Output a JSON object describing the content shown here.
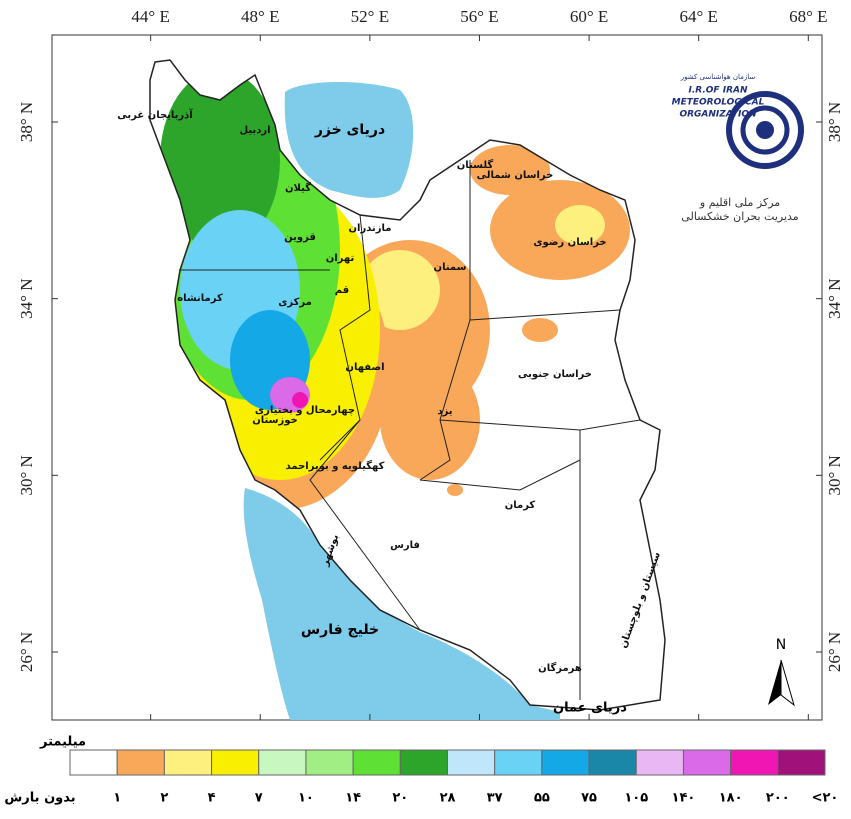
{
  "map": {
    "lon_ticks": [
      {
        "value": 44,
        "label": "44° E"
      },
      {
        "value": 48,
        "label": "48° E"
      },
      {
        "value": 52,
        "label": "52° E"
      },
      {
        "value": 56,
        "label": "56° E"
      },
      {
        "value": 60,
        "label": "60° E"
      },
      {
        "value": 64,
        "label": "64° E"
      },
      {
        "value": 68,
        "label": "68° E"
      }
    ],
    "lat_ticks": [
      {
        "value": 38,
        "label": "38° N"
      },
      {
        "value": 34,
        "label": "34° N"
      },
      {
        "value": 30,
        "label": "30° N"
      },
      {
        "value": 26,
        "label": "26° N"
      }
    ],
    "xlim": [
      40.4,
      68.5
    ],
    "ylim": [
      24.46,
      39.97
    ],
    "seas": [
      "دریای خزر",
      "خلیج فارس",
      "دریای عمان"
    ],
    "provinces": [
      "آذربایجان غربی",
      "اردبیل",
      "گیلان",
      "مازندران",
      "گلستان",
      "خراسان شمالی",
      "خراسان رضوی",
      "سمنان",
      "تهران",
      "قزوین",
      "قم",
      "مرکزی",
      "کرمانشاه",
      "اصفهان",
      "خراسان جنوبی",
      "یزد",
      "چهارمحال و بختیاری",
      "خوزستان",
      "کهگیلویه و بویراحمد",
      "فارس",
      "کرمان",
      "بوشهر",
      "هرمزگان",
      "سیستان و بلوچستان"
    ],
    "north": "N",
    "logo": {
      "org": "سازمان هواشناسی کشور",
      "en": [
        "I.R.OF IRAN",
        "METEOROLOGICAL",
        "ORGANIZATION"
      ],
      "center": [
        "مرکز ملی اقلیم و",
        "مدیریت بحران خشکسالی"
      ]
    },
    "legend": {
      "unit": "میلیمتر",
      "colors": [
        "#ffffff",
        "#f9a85a",
        "#fdf07e",
        "#f8f000",
        "#c8f7c0",
        "#a0ee84",
        "#5fe035",
        "#2da42a",
        "#bfe6fb",
        "#6ad3f5",
        "#14a8e6",
        "#1a86a8",
        "#e9b8f4",
        "#da6ae8",
        "#f016b4",
        "#a0127a"
      ],
      "labels": [
        "بدون بارش",
        "۱",
        "۲",
        "۴",
        "۷",
        "۱۰",
        "۱۴",
        "۲۰",
        "۲۸",
        "۳۷",
        "۵۵",
        "۷۵",
        "۱۰۵",
        "۱۴۰",
        "۱۸۰",
        "۲۰۰",
        "<۲۰"
      ]
    }
  }
}
